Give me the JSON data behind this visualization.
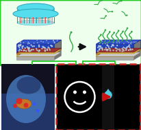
{
  "outer_border_color": "#22cc22",
  "red_dashed_border_color": "#cc2222",
  "arrow_color": "#cc1111",
  "water_drop_color": "#55ccdd",
  "smiley_color": "#ffffff",
  "green_line_color": "#22cc22",
  "background_color": "#f8f8f8",
  "hat_cyan": "#55ddee",
  "hat_edge": "#33aabb",
  "hat_fringe_red": "#cc4444",
  "hat_fringe_gray": "#aaaaaa",
  "layer_blue": "#2244cc",
  "layer_gold": "#ccaa33",
  "layer_red_thin": "#884433",
  "layer_gray": "#999999",
  "layer_gray_light": "#bbbbbb",
  "dots_color": "#cccccc",
  "strand_green": "#33aa44",
  "strand_blue": "#337799",
  "black_arrow": "#111111",
  "photo_bg": "#223355",
  "photo_glove": "#4477aa",
  "photo_orange": "#cc7722",
  "photo_red": "#cc2222",
  "photo_blue": "#3355ff",
  "panel_black": "#000000",
  "red_box_bg": "#111111",
  "green_box_bg": "#eeffee"
}
